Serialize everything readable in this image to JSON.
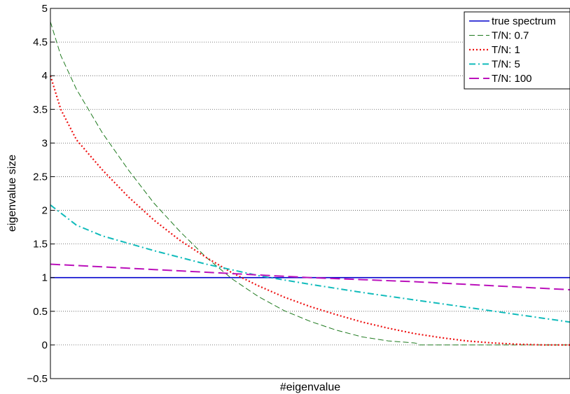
{
  "chart_data": {
    "type": "line",
    "title": "",
    "xlabel": "#eigenvalue",
    "ylabel": "eigenvalue size",
    "xlim": [
      0,
      1
    ],
    "ylim": [
      -0.5,
      5
    ],
    "yticks": [
      -0.5,
      0,
      0.5,
      1,
      1.5,
      2,
      2.5,
      3,
      3.5,
      4,
      4.5,
      5
    ],
    "ytick_labels": [
      "−0.5",
      "0",
      "0.5",
      "1",
      "1.5",
      "2",
      "2.5",
      "3",
      "3.5",
      "4",
      "4.5",
      "5"
    ],
    "grid": "horizontal dotted",
    "legend_position": "top-right",
    "series": [
      {
        "name": "true spectrum",
        "color": "#0000cc",
        "style": "solid",
        "x": [
          0,
          1
        ],
        "y": [
          1,
          1
        ]
      },
      {
        "name": "T/N: 0.7",
        "color": "#1f7a1f",
        "style": "dashed",
        "x": [
          0,
          0.02,
          0.05,
          0.1,
          0.15,
          0.2,
          0.25,
          0.3,
          0.35,
          0.4,
          0.45,
          0.5,
          0.55,
          0.6,
          0.65,
          0.7,
          0.708,
          0.71,
          0.8,
          0.9,
          1.0
        ],
        "y": [
          4.8,
          4.3,
          3.8,
          3.15,
          2.6,
          2.1,
          1.68,
          1.3,
          0.98,
          0.72,
          0.51,
          0.35,
          0.22,
          0.12,
          0.06,
          0.03,
          0.02,
          0,
          0,
          0,
          0
        ]
      },
      {
        "name": "T/N: 1",
        "color": "#ee1111",
        "style": "dotted",
        "x": [
          0,
          0.02,
          0.05,
          0.1,
          0.15,
          0.2,
          0.25,
          0.3,
          0.35,
          0.4,
          0.45,
          0.5,
          0.55,
          0.6,
          0.65,
          0.7,
          0.75,
          0.8,
          0.85,
          0.9,
          0.95,
          1.0
        ],
        "y": [
          4.0,
          3.5,
          3.05,
          2.6,
          2.2,
          1.85,
          1.55,
          1.3,
          1.07,
          0.88,
          0.71,
          0.57,
          0.45,
          0.34,
          0.25,
          0.17,
          0.11,
          0.06,
          0.03,
          0.01,
          0,
          0
        ]
      },
      {
        "name": "T/N: 5",
        "color": "#11bbbb",
        "style": "dashdot",
        "x": [
          0,
          0.05,
          0.1,
          0.2,
          0.3,
          0.4,
          0.5,
          0.6,
          0.7,
          0.8,
          0.9,
          1.0
        ],
        "y": [
          2.08,
          1.78,
          1.62,
          1.4,
          1.2,
          1.03,
          0.9,
          0.78,
          0.67,
          0.56,
          0.45,
          0.34
        ]
      },
      {
        "name": "T/N: 100",
        "color": "#bb11bb",
        "style": "longdash",
        "x": [
          0,
          0.1,
          0.2,
          0.3,
          0.4,
          0.5,
          0.6,
          0.7,
          0.8,
          0.9,
          1.0
        ],
        "y": [
          1.2,
          1.16,
          1.12,
          1.08,
          1.04,
          1.0,
          0.97,
          0.94,
          0.9,
          0.86,
          0.82
        ]
      }
    ]
  }
}
